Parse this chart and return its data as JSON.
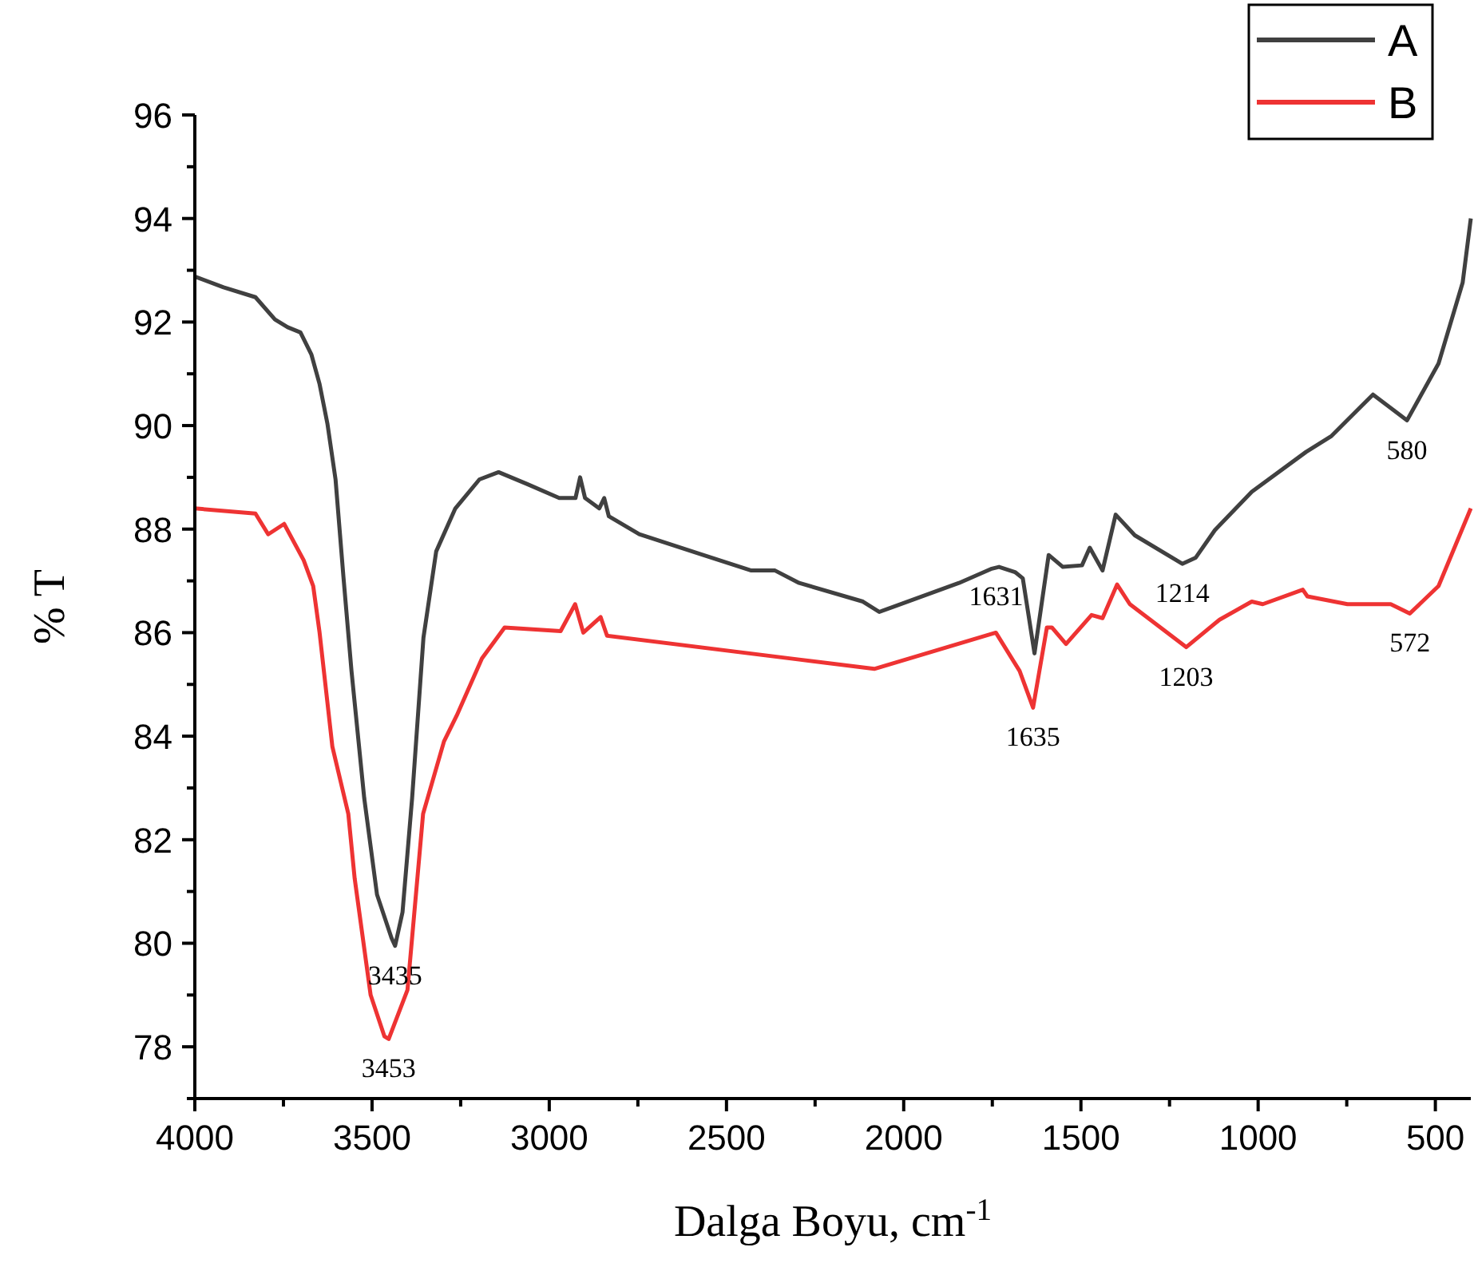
{
  "chart_data": {
    "type": "line",
    "xlabel": "Dalga Boyu, cm$^{-1}$",
    "ylabel": "% T",
    "xlim": [
      4000,
      400
    ],
    "ylim": [
      77,
      96
    ],
    "xticks": [
      4000,
      {
        "value": 3750,
        "label": null
      },
      3500,
      {
        "value": 3250,
        "label": null
      },
      3000,
      {
        "value": 2750,
        "label": null
      },
      2500,
      {
        "value": 2250,
        "label": null
      },
      2000,
      {
        "value": 1750,
        "label": null
      },
      1500,
      {
        "value": 1250,
        "label": null
      },
      1000,
      {
        "value": 750,
        "label": null
      },
      500
    ],
    "yticks": [
      {
        "value": 77,
        "label": null
      },
      78,
      {
        "value": 79,
        "label": null
      },
      80,
      {
        "value": 81,
        "label": null
      },
      82,
      {
        "value": 83,
        "label": null
      },
      84,
      {
        "value": 85,
        "label": null
      },
      86,
      {
        "value": 87,
        "label": null
      },
      88,
      {
        "value": 89,
        "label": null
      },
      90,
      {
        "value": 91,
        "label": null
      },
      92,
      {
        "value": 93,
        "label": null
      },
      94,
      {
        "value": 95,
        "label": null
      },
      96
    ],
    "grid": false,
    "legend": "top right",
    "line_style": "solid",
    "marker": "none",
    "series": [
      {
        "name": "A",
        "color": "#404040",
        "x": [
          4000,
          3919,
          3829,
          3774,
          3738,
          3702,
          3671,
          3648,
          3626,
          3603,
          3581,
          3558,
          3522,
          3486,
          3445,
          3435,
          3414,
          3387,
          3355,
          3319,
          3265,
          3197,
          3143,
          3062,
          2972,
          2926,
          2913,
          2899,
          2859,
          2845,
          2832,
          2746,
          2566,
          2430,
          2363,
          2295,
          2115,
          2069,
          1844,
          1754,
          1731,
          1686,
          1664,
          1631,
          1591,
          1551,
          1497,
          1475,
          1439,
          1402,
          1348,
          1214,
          1176,
          1122,
          1018,
          865,
          793,
          676,
          580,
          491,
          423,
          400
        ],
        "values": [
          92.88,
          92.67,
          92.48,
          92.05,
          91.9,
          91.8,
          91.37,
          90.8,
          90.04,
          88.96,
          87.1,
          85.26,
          82.8,
          80.94,
          80.1,
          79.95,
          80.6,
          82.8,
          85.9,
          87.57,
          88.4,
          88.96,
          89.1,
          88.87,
          88.6,
          88.6,
          89.0,
          88.6,
          88.4,
          88.6,
          88.25,
          87.9,
          87.5,
          87.2,
          87.2,
          86.96,
          86.6,
          86.4,
          86.96,
          87.23,
          87.27,
          87.17,
          87.05,
          85.6,
          87.5,
          87.27,
          87.3,
          87.64,
          87.2,
          88.28,
          87.88,
          87.33,
          87.45,
          87.98,
          88.72,
          89.49,
          89.8,
          90.6,
          90.1,
          91.2,
          92.76,
          94.0
        ]
      },
      {
        "name": "B",
        "color": "#ee3333",
        "x": [
          4000,
          3829,
          3793,
          3748,
          3693,
          3666,
          3648,
          3612,
          3567,
          3549,
          3504,
          3465,
          3453,
          3400,
          3356,
          3297,
          3261,
          3190,
          3126,
          2968,
          2927,
          2904,
          2855,
          2837,
          2295,
          2083,
          1740,
          1673,
          1635,
          1596,
          1582,
          1542,
          1470,
          1439,
          1398,
          1362,
          1203,
          1109,
          1018,
          987,
          874,
          861,
          748,
          626,
          572,
          491,
          400
        ],
        "values": [
          88.4,
          88.3,
          87.9,
          88.1,
          87.4,
          86.9,
          86.0,
          83.8,
          82.5,
          81.25,
          79.0,
          78.2,
          78.15,
          79.1,
          82.5,
          83.9,
          84.4,
          85.5,
          86.1,
          86.03,
          86.55,
          86.0,
          86.3,
          85.94,
          85.48,
          85.3,
          86.0,
          85.26,
          84.55,
          86.1,
          86.1,
          85.78,
          86.34,
          86.28,
          86.93,
          86.55,
          85.72,
          86.25,
          86.6,
          86.55,
          86.83,
          86.7,
          86.55,
          86.55,
          86.37,
          86.9,
          88.4
        ]
      }
    ],
    "annotations": [
      {
        "text": "3435",
        "x": 3435,
        "y": 79.95
      },
      {
        "text": "3453",
        "x": 3453,
        "y": 78.15
      },
      {
        "text": "1631",
        "x": 1631,
        "y": 85.6
      },
      {
        "text": "1635",
        "x": 1635,
        "y": 84.55
      },
      {
        "text": "1214",
        "x": 1214,
        "y": 87.33
      },
      {
        "text": "1203",
        "x": 1203,
        "y": 85.72
      },
      {
        "text": "580",
        "x": 580,
        "y": 90.1
      },
      {
        "text": "572",
        "x": 572,
        "y": 86.37
      }
    ]
  }
}
